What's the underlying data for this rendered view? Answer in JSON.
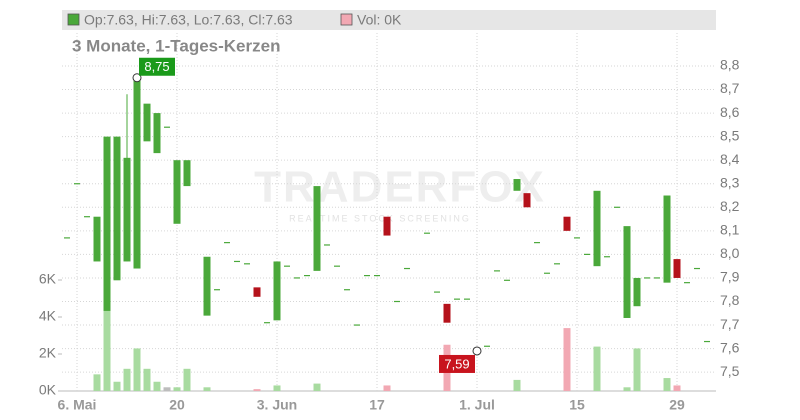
{
  "chart_data": {
    "type": "candlestick",
    "header": {
      "ohlc": "Op:7.63, Hi:7.63, Lo:7.63, Cl:7.63",
      "volume": "Vol: 0K"
    },
    "title": "3 Monate, 1-Tages-Kerzen",
    "watermark": {
      "brand": "TRADERFOX",
      "tagline": "REALTIME STOCK SCREENING"
    },
    "categories": [
      null,
      "6. Mai",
      null,
      null,
      null,
      null,
      null,
      null,
      null,
      null,
      null,
      "20",
      null,
      null,
      null,
      null,
      null,
      null,
      null,
      null,
      null,
      "3. Jun",
      null,
      null,
      null,
      null,
      null,
      null,
      null,
      null,
      null,
      "17",
      null,
      null,
      null,
      null,
      null,
      null,
      null,
      null,
      null,
      "1. Jul",
      null,
      null,
      null,
      null,
      null,
      null,
      null,
      null,
      null,
      "15",
      null,
      null,
      null,
      null,
      null,
      null,
      null,
      null,
      null,
      "29",
      null,
      null,
      null
    ],
    "open": [
      8.07,
      8.3,
      8.16,
      7.97,
      7.76,
      7.89,
      7.97,
      7.94,
      8.48,
      8.43,
      8.54,
      8.13,
      8.29,
      null,
      7.74,
      7.85,
      8.05,
      7.97,
      7.96,
      7.86,
      7.71,
      7.72,
      7.95,
      7.9,
      7.91,
      7.93,
      8.04,
      7.95,
      7.85,
      7.7,
      7.91,
      7.91,
      8.16,
      7.8,
      7.94,
      null,
      8.09,
      7.84,
      7.79,
      7.81,
      7.81,
      7.59,
      7.61,
      7.93,
      7.89,
      8.27,
      8.26,
      8.05,
      7.92,
      7.96,
      8.16,
      8.07,
      8.0,
      7.95,
      7.99,
      8.2,
      7.73,
      7.78,
      7.9,
      7.9,
      7.88,
      7.98,
      7.88,
      7.94,
      7.63
    ],
    "high": [
      8.07,
      8.3,
      8.16,
      8.16,
      8.5,
      8.5,
      8.68,
      8.75,
      8.64,
      8.6,
      8.54,
      8.4,
      8.4,
      null,
      7.99,
      7.85,
      8.05,
      7.97,
      7.96,
      7.86,
      7.71,
      7.97,
      7.95,
      7.9,
      7.91,
      8.29,
      8.04,
      7.95,
      7.85,
      7.7,
      7.91,
      7.91,
      8.16,
      7.8,
      7.94,
      null,
      8.09,
      7.84,
      7.79,
      7.81,
      7.81,
      7.59,
      7.61,
      7.93,
      7.89,
      8.32,
      8.26,
      8.05,
      7.92,
      7.96,
      8.16,
      8.07,
      8.0,
      8.27,
      7.99,
      8.2,
      8.12,
      7.9,
      7.9,
      7.9,
      8.25,
      7.98,
      7.88,
      7.94,
      7.63
    ],
    "low": [
      8.07,
      8.3,
      8.16,
      7.97,
      7.76,
      7.89,
      7.97,
      7.94,
      8.48,
      8.43,
      8.54,
      8.13,
      8.29,
      null,
      7.74,
      7.85,
      8.05,
      7.97,
      7.96,
      7.82,
      7.71,
      7.72,
      7.95,
      7.9,
      7.91,
      7.93,
      8.04,
      7.95,
      7.85,
      7.7,
      7.91,
      7.91,
      8.08,
      7.8,
      7.94,
      null,
      8.09,
      7.84,
      7.71,
      7.81,
      7.81,
      7.59,
      7.61,
      7.93,
      7.89,
      8.27,
      8.2,
      8.05,
      7.92,
      7.96,
      8.1,
      8.07,
      8.0,
      7.95,
      7.99,
      8.2,
      7.73,
      7.78,
      7.9,
      7.9,
      7.88,
      7.9,
      7.88,
      7.94,
      7.63
    ],
    "close": [
      8.07,
      8.3,
      8.16,
      8.16,
      8.5,
      8.5,
      8.41,
      8.75,
      8.64,
      8.6,
      8.54,
      8.4,
      8.4,
      null,
      7.99,
      7.85,
      8.05,
      7.97,
      7.96,
      7.82,
      7.71,
      7.97,
      7.95,
      7.9,
      7.91,
      8.29,
      8.04,
      7.95,
      7.85,
      7.7,
      7.91,
      7.91,
      8.08,
      7.8,
      7.94,
      null,
      8.09,
      7.84,
      7.71,
      7.81,
      7.81,
      7.59,
      7.61,
      7.93,
      7.89,
      8.32,
      8.2,
      8.05,
      7.92,
      7.96,
      8.1,
      8.07,
      8.0,
      8.27,
      7.99,
      8.2,
      8.12,
      7.9,
      7.9,
      7.9,
      8.25,
      7.9,
      7.88,
      7.94,
      7.63
    ],
    "volume": [
      0,
      0,
      0,
      0.9,
      4.4,
      0.5,
      1.2,
      2.3,
      1.2,
      0.5,
      0.2,
      0.2,
      1.2,
      null,
      0.2,
      0,
      0,
      0,
      0,
      0.1,
      0,
      0.3,
      0,
      0,
      0,
      0.4,
      0,
      0,
      0,
      0,
      0,
      0,
      0.3,
      0,
      0,
      null,
      0,
      0,
      2.5,
      0,
      0,
      0,
      0,
      0,
      0,
      0.6,
      0,
      0,
      0,
      0,
      3.4,
      0,
      0,
      2.4,
      0,
      0,
      0.2,
      2.3,
      0,
      0,
      0.7,
      0.3,
      0,
      0,
      0
    ],
    "annotations": [
      {
        "text": "8,75",
        "index": 7,
        "value": 8.75,
        "color": "#1a9a1a"
      },
      {
        "text": "7,59",
        "index": 41,
        "value": 7.59,
        "color": "#c8141e"
      }
    ],
    "colors": {
      "up": "#4aa83a",
      "down": "#b5121b",
      "flat": "#4aa83a",
      "vol_up": "#a8dba0",
      "vol_down": "#f2a8b3",
      "vol_flat": "#bdbdbd"
    },
    "ylim": [
      7.42,
      8.94
    ],
    "yticks": [
      {
        "value": 7.5,
        "label": "7,5"
      },
      {
        "value": 7.6,
        "label": "7,6"
      },
      {
        "value": 7.7,
        "label": "7,7"
      },
      {
        "value": 7.8,
        "label": "7,8"
      },
      {
        "value": 7.9,
        "label": "7,9"
      },
      {
        "value": 8.0,
        "label": "8,0"
      },
      {
        "value": 8.1,
        "label": "8,1"
      },
      {
        "value": 8.2,
        "label": "8,2"
      },
      {
        "value": 8.3,
        "label": "8,3"
      },
      {
        "value": 8.4,
        "label": "8,4"
      },
      {
        "value": 8.5,
        "label": "8,5"
      },
      {
        "value": 8.6,
        "label": "8,6"
      },
      {
        "value": 8.7,
        "label": "8,7"
      },
      {
        "value": 8.8,
        "label": "8,8"
      }
    ],
    "vlim": [
      0,
      19.35
    ],
    "vticks": [
      {
        "value": 0,
        "label": "0K"
      },
      {
        "value": 2,
        "label": "2K"
      },
      {
        "value": 4,
        "label": "4K"
      },
      {
        "value": 6,
        "label": "6K"
      }
    ],
    "grid": true
  }
}
